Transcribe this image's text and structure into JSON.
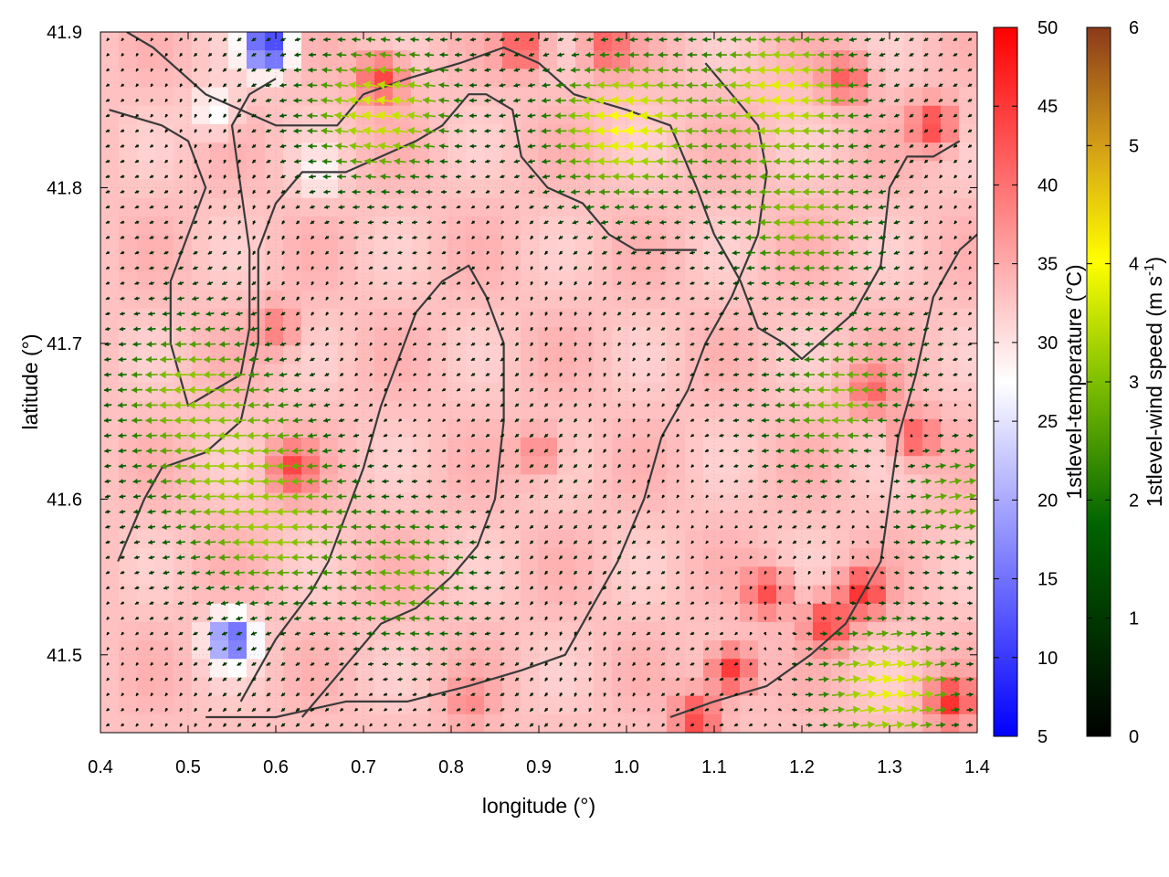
{
  "chart_data": {
    "type": "heatmap",
    "xlabel": "longitude (°)",
    "ylabel": "latitude (°)",
    "xlim": [
      0.4,
      1.4
    ],
    "ylim": [
      41.45,
      41.9
    ],
    "xticks": [
      "0.4",
      "0.5",
      "0.6",
      "0.7",
      "0.8",
      "0.9",
      "1.0",
      "1.1",
      "1.2",
      "1.3",
      "1.4"
    ],
    "yticks": [
      "41.5",
      "41.6",
      "41.7",
      "41.8",
      "41.9"
    ],
    "grid": true,
    "temperature_colorbar": {
      "label": "1stlevel-temperature (°C)",
      "range": [
        5,
        50
      ],
      "ticks": [
        "5",
        "10",
        "15",
        "20",
        "25",
        "30",
        "35",
        "40",
        "45",
        "50"
      ],
      "colors": [
        "#0000ff",
        "#ffffff",
        "#ff0000"
      ]
    },
    "wind_colorbar": {
      "label_main": "1stlevel-wind speed (m s",
      "label_sup": "-1",
      "label_end": ")",
      "range": [
        0,
        6
      ],
      "ticks": [
        "0",
        "1",
        "2",
        "3",
        "4",
        "5",
        "6"
      ],
      "colors": [
        "#000000",
        "#006400",
        "#7fbf00",
        "#ffff00",
        "#d4a017",
        "#8b3a1a"
      ]
    },
    "background_temperature": 33,
    "temperature_hotspots": [
      {
        "lon": 0.59,
        "lat": 41.89,
        "temp": 8
      },
      {
        "lon": 0.55,
        "lat": 41.51,
        "temp": 12
      },
      {
        "lon": 0.53,
        "lat": 41.85,
        "temp": 27
      },
      {
        "lon": 0.65,
        "lat": 41.81,
        "temp": 28
      },
      {
        "lon": 0.62,
        "lat": 41.62,
        "temp": 44
      },
      {
        "lon": 0.72,
        "lat": 41.87,
        "temp": 44
      },
      {
        "lon": 0.88,
        "lat": 41.89,
        "temp": 43
      },
      {
        "lon": 0.98,
        "lat": 41.89,
        "temp": 42
      },
      {
        "lon": 1.25,
        "lat": 41.87,
        "temp": 42
      },
      {
        "lon": 1.35,
        "lat": 41.84,
        "temp": 44
      },
      {
        "lon": 1.27,
        "lat": 41.54,
        "temp": 46
      },
      {
        "lon": 1.23,
        "lat": 41.52,
        "temp": 45
      },
      {
        "lon": 1.12,
        "lat": 41.49,
        "temp": 45
      },
      {
        "lon": 1.16,
        "lat": 41.54,
        "temp": 43
      },
      {
        "lon": 1.08,
        "lat": 41.46,
        "temp": 44
      },
      {
        "lon": 1.37,
        "lat": 41.47,
        "temp": 46
      },
      {
        "lon": 1.33,
        "lat": 41.64,
        "temp": 42
      },
      {
        "lon": 1.28,
        "lat": 41.67,
        "temp": 41
      },
      {
        "lon": 0.82,
        "lat": 41.47,
        "temp": 38
      },
      {
        "lon": 0.6,
        "lat": 41.71,
        "temp": 39
      },
      {
        "lon": 0.9,
        "lat": 41.63,
        "temp": 38
      }
    ],
    "wind_regions": [
      {
        "lon": 1.0,
        "lat": 41.84,
        "u": -3.6,
        "v": 0.3
      },
      {
        "lon": 1.18,
        "lat": 41.86,
        "u": -3.4,
        "v": 0.2
      },
      {
        "lon": 0.72,
        "lat": 41.85,
        "u": -3.2,
        "v": 0.5
      },
      {
        "lon": 1.3,
        "lat": 41.48,
        "u": 3.4,
        "v": 0.6
      },
      {
        "lon": 0.55,
        "lat": 41.62,
        "u": -2.8,
        "v": -0.2
      },
      {
        "lon": 0.5,
        "lat": 41.67,
        "u": -2.6,
        "v": 0.0
      },
      {
        "lon": 1.25,
        "lat": 41.66,
        "u": -2.6,
        "v": 0.1
      },
      {
        "lon": 0.6,
        "lat": 41.58,
        "u": -2.7,
        "v": 0.0
      },
      {
        "lon": 1.2,
        "lat": 41.78,
        "u": -2.5,
        "v": 0.0
      },
      {
        "lon": 0.75,
        "lat": 41.55,
        "u": -2.2,
        "v": 0.2
      },
      {
        "lon": 1.38,
        "lat": 41.6,
        "u": 2.2,
        "v": 0.4
      }
    ],
    "contour_lines": [
      [
        [
          0.41,
          41.85
        ],
        [
          0.47,
          41.84
        ],
        [
          0.5,
          41.83
        ],
        [
          0.52,
          41.8
        ],
        [
          0.5,
          41.77
        ],
        [
          0.48,
          41.74
        ],
        [
          0.48,
          41.7
        ],
        [
          0.5,
          41.66
        ],
        [
          0.53,
          41.67
        ],
        [
          0.56,
          41.68
        ],
        [
          0.57,
          41.71
        ],
        [
          0.57,
          41.76
        ],
        [
          0.56,
          41.8
        ],
        [
          0.55,
          41.84
        ],
        [
          0.57,
          41.86
        ],
        [
          0.6,
          41.87
        ]
      ],
      [
        [
          0.42,
          41.56
        ],
        [
          0.45,
          41.6
        ],
        [
          0.47,
          41.62
        ],
        [
          0.52,
          41.63
        ],
        [
          0.56,
          41.65
        ],
        [
          0.58,
          41.7
        ],
        [
          0.58,
          41.76
        ],
        [
          0.6,
          41.79
        ],
        [
          0.63,
          41.81
        ],
        [
          0.68,
          41.81
        ],
        [
          0.72,
          41.82
        ],
        [
          0.76,
          41.83
        ],
        [
          0.79,
          41.84
        ],
        [
          0.82,
          41.86
        ],
        [
          0.84,
          41.86
        ],
        [
          0.87,
          41.85
        ],
        [
          0.88,
          41.82
        ],
        [
          0.91,
          41.8
        ],
        [
          0.95,
          41.79
        ],
        [
          0.98,
          41.77
        ],
        [
          1.01,
          41.76
        ],
        [
          1.05,
          41.76
        ],
        [
          1.08,
          41.76
        ]
      ],
      [
        [
          0.43,
          41.9
        ],
        [
          0.46,
          41.89
        ],
        [
          0.5,
          41.87
        ],
        [
          0.52,
          41.86
        ],
        [
          0.56,
          41.85
        ],
        [
          0.6,
          41.84
        ],
        [
          0.64,
          41.84
        ],
        [
          0.67,
          41.84
        ],
        [
          0.7,
          41.86
        ],
        [
          0.75,
          41.87
        ],
        [
          0.81,
          41.88
        ],
        [
          0.86,
          41.89
        ],
        [
          0.9,
          41.88
        ],
        [
          0.94,
          41.86
        ],
        [
          1.0,
          41.85
        ],
        [
          1.05,
          41.84
        ],
        [
          1.08,
          41.8
        ],
        [
          1.1,
          41.77
        ],
        [
          1.13,
          41.74
        ],
        [
          1.15,
          41.71
        ],
        [
          1.18,
          41.7
        ],
        [
          1.2,
          41.69
        ],
        [
          1.22,
          41.7
        ],
        [
          1.26,
          41.72
        ],
        [
          1.29,
          41.75
        ],
        [
          1.3,
          41.8
        ],
        [
          1.32,
          41.82
        ],
        [
          1.35,
          41.82
        ],
        [
          1.38,
          41.83
        ]
      ],
      [
        [
          0.56,
          41.47
        ],
        [
          0.6,
          41.51
        ],
        [
          0.64,
          41.54
        ],
        [
          0.66,
          41.56
        ],
        [
          0.68,
          41.59
        ],
        [
          0.7,
          41.62
        ],
        [
          0.72,
          41.66
        ],
        [
          0.74,
          41.69
        ],
        [
          0.76,
          41.72
        ],
        [
          0.79,
          41.74
        ],
        [
          0.82,
          41.75
        ],
        [
          0.84,
          41.73
        ],
        [
          0.86,
          41.7
        ],
        [
          0.86,
          41.65
        ],
        [
          0.85,
          41.6
        ],
        [
          0.83,
          41.57
        ],
        [
          0.8,
          41.55
        ],
        [
          0.76,
          41.53
        ],
        [
          0.72,
          41.52
        ],
        [
          0.69,
          41.5
        ],
        [
          0.66,
          41.48
        ],
        [
          0.63,
          41.46
        ]
      ],
      [
        [
          0.52,
          41.46
        ],
        [
          0.6,
          41.46
        ],
        [
          0.68,
          41.47
        ],
        [
          0.75,
          41.47
        ],
        [
          0.82,
          41.48
        ],
        [
          0.88,
          41.49
        ],
        [
          0.93,
          41.5
        ],
        [
          0.96,
          41.53
        ],
        [
          0.99,
          41.56
        ],
        [
          1.02,
          41.6
        ],
        [
          1.04,
          41.64
        ],
        [
          1.07,
          41.67
        ],
        [
          1.09,
          41.7
        ],
        [
          1.12,
          41.73
        ],
        [
          1.15,
          41.77
        ],
        [
          1.16,
          41.81
        ],
        [
          1.15,
          41.84
        ],
        [
          1.12,
          41.86
        ],
        [
          1.09,
          41.88
        ]
      ],
      [
        [
          1.05,
          41.46
        ],
        [
          1.1,
          41.47
        ],
        [
          1.16,
          41.48
        ],
        [
          1.21,
          41.5
        ],
        [
          1.25,
          41.52
        ],
        [
          1.29,
          41.56
        ],
        [
          1.3,
          41.6
        ],
        [
          1.31,
          41.64
        ],
        [
          1.33,
          41.68
        ],
        [
          1.35,
          41.73
        ],
        [
          1.38,
          41.76
        ],
        [
          1.4,
          41.77
        ]
      ]
    ]
  }
}
